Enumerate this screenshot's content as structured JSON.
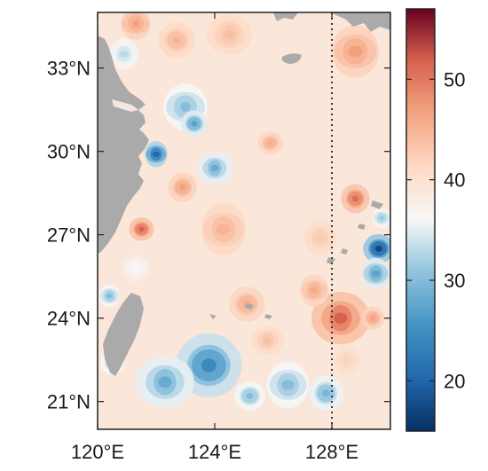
{
  "map": {
    "lon_range": [
      120,
      130
    ],
    "lat_range": [
      20,
      35
    ],
    "lon_ticks": [
      {
        "value": 120,
        "label": "120°E"
      },
      {
        "value": 124,
        "label": "124°E"
      },
      {
        "value": 128,
        "label": "128°E"
      }
    ],
    "lat_ticks": [
      {
        "value": 21,
        "label": "21°N"
      },
      {
        "value": 24,
        "label": "24°N"
      },
      {
        "value": 27,
        "label": "27°N"
      },
      {
        "value": 30,
        "label": "30°N"
      },
      {
        "value": 33,
        "label": "33°N"
      }
    ],
    "meridian_line": {
      "lon": 128,
      "style": "dotted"
    },
    "land_color": "#aaaaaa",
    "colorbar": {
      "range": [
        15,
        57
      ],
      "ticks": [
        {
          "value": 20,
          "label": "20"
        },
        {
          "value": 30,
          "label": "30"
        },
        {
          "value": 40,
          "label": "40"
        },
        {
          "value": 50,
          "label": "50"
        }
      ],
      "colormap": "RdBu_r"
    },
    "field": {
      "background": 39,
      "blobs": [
        {
          "lon": 122.0,
          "lat": 29.9,
          "r": 0.45,
          "v": 20
        },
        {
          "lon": 123.0,
          "lat": 31.6,
          "r": 0.8,
          "v": 30
        },
        {
          "lon": 123.3,
          "lat": 31.0,
          "r": 0.45,
          "v": 27
        },
        {
          "lon": 124.0,
          "lat": 29.4,
          "r": 0.55,
          "v": 28
        },
        {
          "lon": 120.9,
          "lat": 33.5,
          "r": 0.55,
          "v": 33
        },
        {
          "lon": 122.9,
          "lat": 28.7,
          "r": 0.5,
          "v": 47
        },
        {
          "lon": 121.5,
          "lat": 27.2,
          "r": 0.4,
          "v": 52
        },
        {
          "lon": 121.1,
          "lat": 29.6,
          "r": 0.4,
          "v": 44
        },
        {
          "lon": 121.3,
          "lat": 34.6,
          "r": 0.55,
          "v": 47
        },
        {
          "lon": 122.7,
          "lat": 34.0,
          "r": 0.6,
          "v": 45
        },
        {
          "lon": 124.5,
          "lat": 34.2,
          "r": 0.7,
          "v": 44
        },
        {
          "lon": 128.8,
          "lat": 33.6,
          "r": 0.9,
          "v": 47
        },
        {
          "lon": 128.8,
          "lat": 28.3,
          "r": 0.5,
          "v": 51
        },
        {
          "lon": 125.9,
          "lat": 30.3,
          "r": 0.4,
          "v": 46
        },
        {
          "lon": 124.3,
          "lat": 27.2,
          "r": 0.9,
          "v": 45
        },
        {
          "lon": 127.6,
          "lat": 26.9,
          "r": 0.6,
          "v": 43
        },
        {
          "lon": 125.1,
          "lat": 24.5,
          "r": 0.6,
          "v": 46
        },
        {
          "lon": 128.3,
          "lat": 24.0,
          "r": 0.9,
          "v": 52
        },
        {
          "lon": 127.4,
          "lat": 25.0,
          "r": 0.55,
          "v": 46
        },
        {
          "lon": 129.4,
          "lat": 24.0,
          "r": 0.4,
          "v": 47
        },
        {
          "lon": 129.6,
          "lat": 26.5,
          "r": 0.5,
          "v": 17
        },
        {
          "lon": 129.5,
          "lat": 25.6,
          "r": 0.55,
          "v": 27
        },
        {
          "lon": 129.7,
          "lat": 27.6,
          "r": 0.35,
          "v": 31
        },
        {
          "lon": 123.8,
          "lat": 22.3,
          "r": 1.1,
          "v": 24
        },
        {
          "lon": 122.3,
          "lat": 21.7,
          "r": 0.9,
          "v": 28
        },
        {
          "lon": 126.5,
          "lat": 21.6,
          "r": 0.8,
          "v": 30
        },
        {
          "lon": 127.8,
          "lat": 21.3,
          "r": 0.6,
          "v": 29
        },
        {
          "lon": 125.2,
          "lat": 21.2,
          "r": 0.5,
          "v": 30
        },
        {
          "lon": 120.4,
          "lat": 24.8,
          "r": 0.4,
          "v": 30
        },
        {
          "lon": 121.3,
          "lat": 25.8,
          "r": 0.5,
          "v": 36
        },
        {
          "lon": 120.5,
          "lat": 22.4,
          "r": 0.4,
          "v": 31
        },
        {
          "lon": 125.8,
          "lat": 23.2,
          "r": 0.5,
          "v": 44
        },
        {
          "lon": 128.5,
          "lat": 22.5,
          "r": 0.5,
          "v": 42
        }
      ]
    }
  }
}
